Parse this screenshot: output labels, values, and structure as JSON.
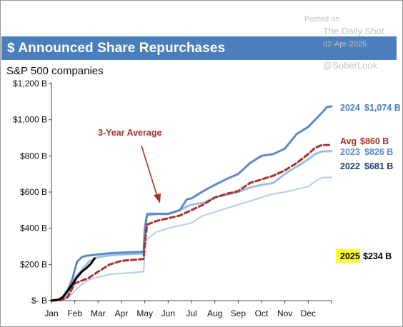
{
  "watermark": {
    "posted_on": "Posted on",
    "source": "The Daily Shot",
    "date": "02-Apr-2025",
    "handle": "@SoberLook"
  },
  "chart_data": {
    "type": "line",
    "title": "$ Announced Share Repurchases",
    "subtitle": "S&P 500 companies",
    "ylim": [
      0,
      1200
    ],
    "yticks": [
      0,
      200,
      400,
      600,
      800,
      1000,
      1200
    ],
    "ytick_labels": [
      "$- B",
      "$200 B",
      "$400 B",
      "$600 B",
      "$800 B",
      "$1,000 B",
      "$1,200 B"
    ],
    "xlim": [
      0,
      12
    ],
    "xticks": [
      0,
      1,
      2,
      3,
      4,
      5,
      6,
      7,
      8,
      9,
      10,
      11
    ],
    "xtick_labels": [
      "Jan",
      "Feb",
      "Mar",
      "Apr",
      "May",
      "Jun",
      "Jul",
      "Aug",
      "Sep",
      "Oct",
      "Nov",
      "Dec"
    ],
    "annotation": "3-Year Average",
    "colors": {
      "s2024": "#5b8cc6",
      "s2023": "#9ebde0",
      "s2022": "#b6cde9",
      "avg": "#a8322a",
      "s2025": "#000000",
      "highlight": "#ffff33",
      "label2024": "#4a7ebc",
      "label2023": "#5b8cc6",
      "label2022": "#1f3f73"
    },
    "series": [
      {
        "name": "2024",
        "label_year": "2024",
        "label_value": "$1,074 B",
        "x": [
          0,
          0.4,
          0.7,
          0.9,
          1.0,
          1.1,
          1.3,
          1.5,
          1.8,
          2.0,
          2.5,
          3.0,
          3.5,
          3.95,
          4.0,
          4.1,
          4.5,
          5.0,
          5.5,
          5.8,
          6.0,
          6.5,
          7.0,
          7.5,
          8.0,
          8.3,
          8.5,
          9.0,
          9.5,
          10.0,
          10.5,
          11.0,
          11.3,
          11.6,
          11.8,
          12.0
        ],
        "y": [
          0,
          5,
          60,
          120,
          170,
          215,
          240,
          248,
          252,
          255,
          262,
          265,
          268,
          270,
          400,
          480,
          480,
          480,
          500,
          560,
          565,
          605,
          640,
          672,
          700,
          735,
          760,
          800,
          810,
          840,
          920,
          960,
          1000,
          1040,
          1070,
          1074
        ]
      },
      {
        "name": "2023",
        "label_year": "2023",
        "label_value": "$826 B",
        "x": [
          0,
          0.4,
          0.7,
          1.0,
          1.3,
          1.6,
          2.0,
          2.5,
          3.0,
          3.5,
          3.95,
          4.0,
          4.1,
          4.5,
          5.0,
          5.5,
          5.8,
          6.0,
          6.5,
          7.0,
          7.5,
          8.0,
          8.5,
          9.0,
          9.5,
          10.0,
          10.5,
          11.0,
          11.3,
          11.6,
          12.0
        ],
        "y": [
          0,
          5,
          40,
          120,
          170,
          215,
          240,
          250,
          255,
          258,
          260,
          380,
          470,
          478,
          478,
          500,
          520,
          530,
          540,
          570,
          585,
          600,
          625,
          640,
          650,
          700,
          740,
          780,
          810,
          825,
          826
        ]
      },
      {
        "name": "2022",
        "label_year": "2022",
        "label_value": "$681 B",
        "x": [
          0,
          0.4,
          0.7,
          1.0,
          1.3,
          1.6,
          2.0,
          2.5,
          3.0,
          3.5,
          3.95,
          4.0,
          4.1,
          4.5,
          5.0,
          5.5,
          6.0,
          6.5,
          7.0,
          7.5,
          8.0,
          8.5,
          9.0,
          9.5,
          10.0,
          10.5,
          11.0,
          11.3,
          11.6,
          12.0
        ],
        "y": [
          0,
          2,
          15,
          55,
          90,
          115,
          130,
          145,
          150,
          155,
          160,
          280,
          340,
          380,
          400,
          415,
          430,
          470,
          490,
          510,
          530,
          550,
          570,
          590,
          600,
          615,
          630,
          660,
          680,
          681
        ]
      },
      {
        "name": "Avg",
        "label_year": "Avg",
        "label_value": "$860 B",
        "x": [
          0,
          0.4,
          0.7,
          1.0,
          1.3,
          1.6,
          2.0,
          2.5,
          3.0,
          3.5,
          3.95,
          4.0,
          4.1,
          4.5,
          5.0,
          5.5,
          6.0,
          6.5,
          7.0,
          7.5,
          8.0,
          8.5,
          9.0,
          9.5,
          10.0,
          10.5,
          11.0,
          11.3,
          11.6,
          12.0
        ],
        "y": [
          0,
          2,
          20,
          95,
          110,
          125,
          160,
          200,
          220,
          225,
          230,
          320,
          420,
          440,
          455,
          470,
          500,
          530,
          570,
          590,
          605,
          650,
          670,
          690,
          720,
          760,
          810,
          845,
          860,
          860
        ]
      },
      {
        "name": "2025",
        "label_year": "2025",
        "label_value": "$234 B",
        "x": [
          0,
          0.3,
          0.5,
          0.7,
          0.9,
          1.1,
          1.3,
          1.5,
          1.7,
          1.85
        ],
        "y": [
          0,
          5,
          20,
          55,
          90,
          130,
          160,
          180,
          205,
          234
        ]
      }
    ]
  }
}
